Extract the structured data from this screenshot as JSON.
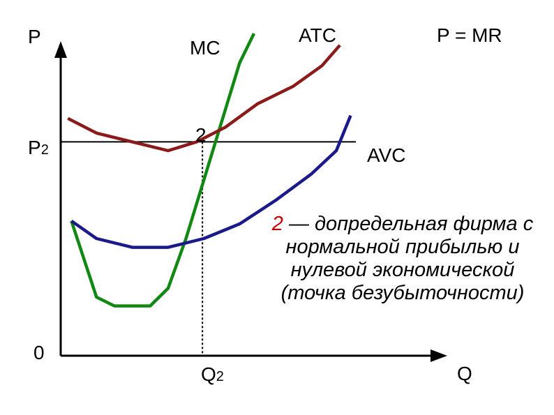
{
  "chart_data": {
    "type": "line",
    "title": "",
    "xlabel": "Q",
    "ylabel": "P",
    "origin_label": "0",
    "xlim": [
      0,
      10
    ],
    "ylim": [
      0,
      10
    ],
    "price_level": {
      "label": "P",
      "subscript": "2",
      "value": 7.3
    },
    "quantity_level": {
      "label": "Q",
      "subscript": "2",
      "value": 3.96
    },
    "point": {
      "label": "2",
      "x": 3.96,
      "y": 7.3
    },
    "price_line_label": "P = MR",
    "series": [
      {
        "name": "MC",
        "color": "#118811",
        "x": [
          0.3,
          1.0,
          1.5,
          2.5,
          3.0,
          3.5,
          4.0,
          4.5,
          5.0,
          5.4
        ],
        "y": [
          4.6,
          2.0,
          1.7,
          1.7,
          2.3,
          4.0,
          6.0,
          8.0,
          10.0,
          11.0
        ]
      },
      {
        "name": "ATC",
        "color": "#8b1a1a",
        "x": [
          0.2,
          1.0,
          2.0,
          3.0,
          3.8,
          4.6,
          5.5,
          6.5,
          7.3,
          7.8
        ],
        "y": [
          8.1,
          7.6,
          7.3,
          7.0,
          7.3,
          7.8,
          8.6,
          9.2,
          9.9,
          10.6
        ]
      },
      {
        "name": "AVC",
        "color": "#1a1a8b",
        "x": [
          0.3,
          1.0,
          2.0,
          3.0,
          4.0,
          5.0,
          6.0,
          7.0,
          7.7,
          8.1
        ],
        "y": [
          4.6,
          4.0,
          3.7,
          3.7,
          4.0,
          4.5,
          5.3,
          6.2,
          7.0,
          8.2
        ]
      }
    ],
    "series_labels": {
      "MC": "MC",
      "ATC": "ATC",
      "AVC": "AVC"
    },
    "annotation": {
      "number": "2",
      "text": " — допредельная фирма с нормальной прибылью и нулевой экономической (точка безубыточности)"
    }
  }
}
